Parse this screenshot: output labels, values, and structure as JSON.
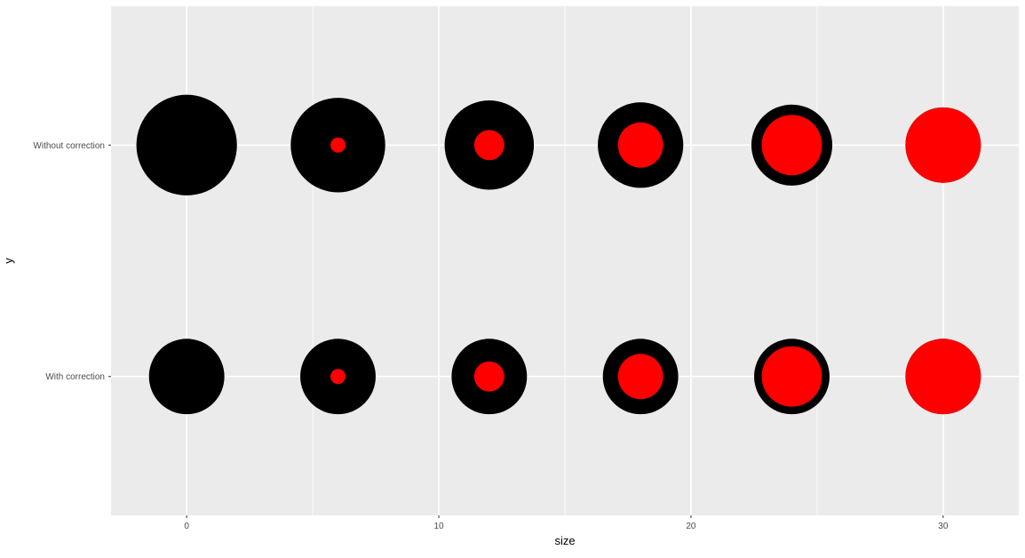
{
  "chart_data": {
    "type": "scatter",
    "title": "",
    "xlabel": "size",
    "ylabel": "y",
    "xlim": [
      -3,
      33
    ],
    "x_ticks": [
      0,
      10,
      20,
      30
    ],
    "x_tick_labels": [
      "0",
      "10",
      "20",
      "30"
    ],
    "categories": [
      "Without correction",
      "With correction"
    ],
    "grid": true,
    "legend": "none",
    "colors": {
      "panel": "#ebebeb",
      "grid": "#ffffff",
      "outer": "#000000",
      "inner": "#ff0000",
      "text": "#4d4d4d"
    },
    "series": [
      {
        "category": "Without correction",
        "points": [
          {
            "x": 0,
            "outer_size": 40,
            "inner_size": 0
          },
          {
            "x": 6,
            "outer_size": 37.6,
            "inner_size": 6
          },
          {
            "x": 12,
            "outer_size": 35.5,
            "inner_size": 12
          },
          {
            "x": 18,
            "outer_size": 34,
            "inner_size": 18
          },
          {
            "x": 24,
            "outer_size": 32.2,
            "inner_size": 24
          },
          {
            "x": 30,
            "outer_size": 30,
            "inner_size": 30
          }
        ]
      },
      {
        "category": "With correction",
        "points": [
          {
            "x": 0,
            "outer_size": 30,
            "inner_size": 0
          },
          {
            "x": 6,
            "outer_size": 30,
            "inner_size": 6
          },
          {
            "x": 12,
            "outer_size": 30,
            "inner_size": 12
          },
          {
            "x": 18,
            "outer_size": 30,
            "inner_size": 18
          },
          {
            "x": 24,
            "outer_size": 30,
            "inner_size": 24
          },
          {
            "x": 30,
            "outer_size": 30,
            "inner_size": 30
          }
        ]
      }
    ]
  }
}
